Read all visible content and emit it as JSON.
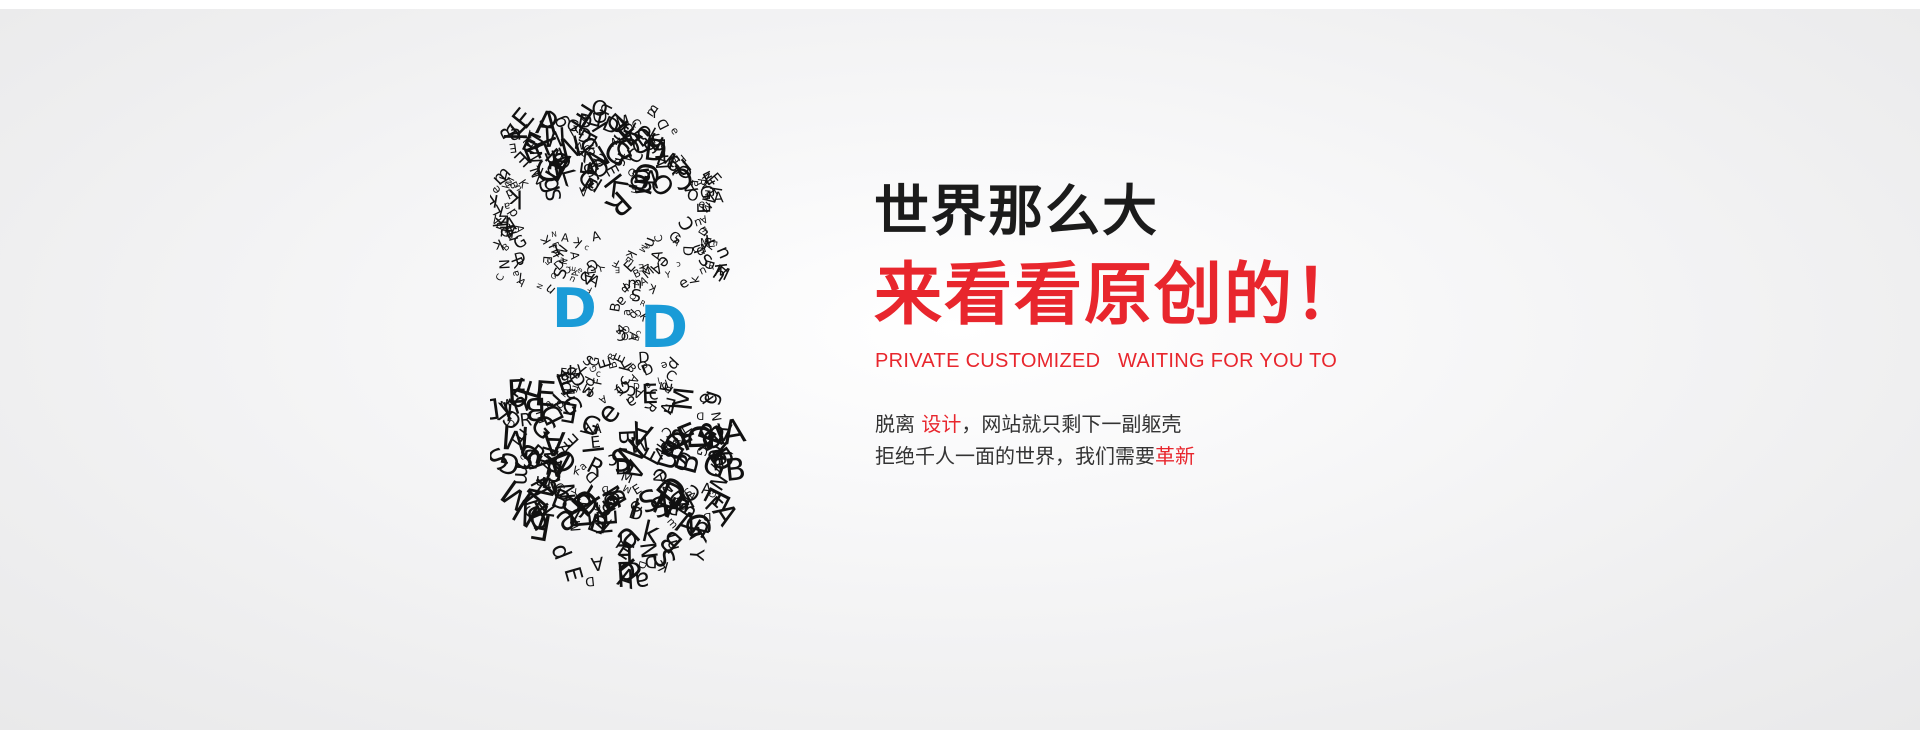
{
  "banner": {
    "headline_line1": "世界那么大",
    "headline_line2": "来看看原创的！",
    "tagline": "PRIVATE CUSTOMIZED   WAITING FOR YOU TO",
    "body": {
      "line1_prefix": "脱离",
      "line1_highlight": " 设计",
      "line1_suffix": "，网站就只剩下一副躯壳",
      "line2_prefix": "拒绝千人一面的世界，我们需要",
      "line2_highlight": "革新"
    },
    "portrait_accent_letters": [
      "D",
      "D"
    ]
  },
  "colors": {
    "accent_red": "#e8262d",
    "headline_dark": "#1b1b1b",
    "body_text": "#333333",
    "eye_blue": "#1a9bd7",
    "letters": "#111111"
  },
  "icons": {
    "portrait": "typographic-bearded-face-illustration"
  }
}
